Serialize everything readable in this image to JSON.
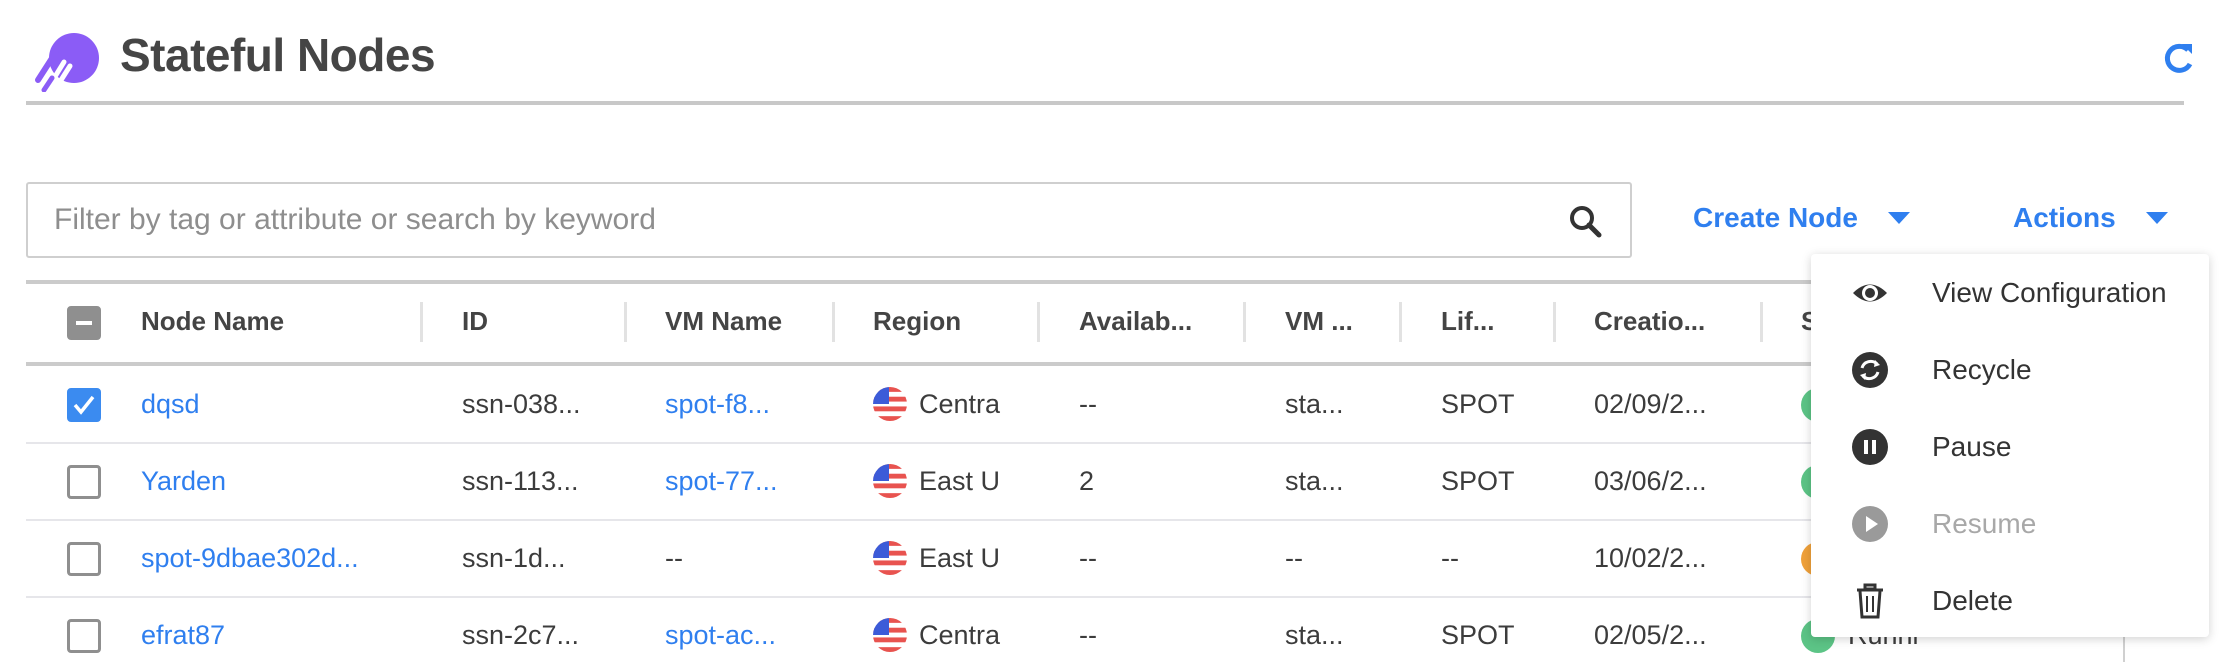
{
  "header": {
    "title": "Stateful Nodes",
    "logo_icon": "spot-logo-icon",
    "refresh_icon": "refresh-icon"
  },
  "search": {
    "placeholder": "Filter by tag or attribute or search by keyword",
    "value": ""
  },
  "toolbar": {
    "create_node_label": "Create Node",
    "actions_label": "Actions"
  },
  "table": {
    "columns": [
      "Node Name",
      "ID",
      "VM Name",
      "Region",
      "Availab...",
      "VM ...",
      "Lif...",
      "Creatio...",
      "S"
    ],
    "rows": [
      {
        "checked": true,
        "node_name": "dqsd",
        "id": "ssn-038...",
        "vm_name": "spot-f8...",
        "region": "Centra",
        "availability": "--",
        "vm": "sta...",
        "lifecycle": "SPOT",
        "created": "02/09/2...",
        "status_color": "#5cc486",
        "status_text": ""
      },
      {
        "checked": false,
        "node_name": "Yarden",
        "id": "ssn-113...",
        "vm_name": "spot-77...",
        "region": "East U",
        "availability": "2",
        "vm": "sta...",
        "lifecycle": "SPOT",
        "created": "03/06/2...",
        "status_color": "#5cc486",
        "status_text": ""
      },
      {
        "checked": false,
        "node_name": "spot-9dbae302d...",
        "id": "ssn-1d...",
        "vm_name": "--",
        "region": "East U",
        "availability": "--",
        "vm": "--",
        "lifecycle": "--",
        "created": "10/02/2...",
        "status_color": "#f0a13a",
        "status_text": ""
      },
      {
        "checked": false,
        "node_name": "efrat87",
        "id": "ssn-2c7...",
        "vm_name": "spot-ac...",
        "region": "Centra",
        "availability": "--",
        "vm": "sta...",
        "lifecycle": "SPOT",
        "created": "02/05/2...",
        "status_color": "#5cc486",
        "status_text": "Runni"
      }
    ]
  },
  "actions_menu": {
    "items": [
      {
        "label": "View Configuration",
        "icon": "eye-icon",
        "disabled": false
      },
      {
        "label": "Recycle",
        "icon": "recycle-icon",
        "disabled": false
      },
      {
        "label": "Pause",
        "icon": "pause-icon",
        "disabled": false
      },
      {
        "label": "Resume",
        "icon": "play-icon",
        "disabled": true
      },
      {
        "label": "Delete",
        "icon": "trash-icon",
        "disabled": false
      }
    ]
  },
  "colors": {
    "accent": "#2f7fef",
    "logo": "#8b5cf6",
    "running": "#5cc486",
    "pending": "#f0a13a"
  }
}
